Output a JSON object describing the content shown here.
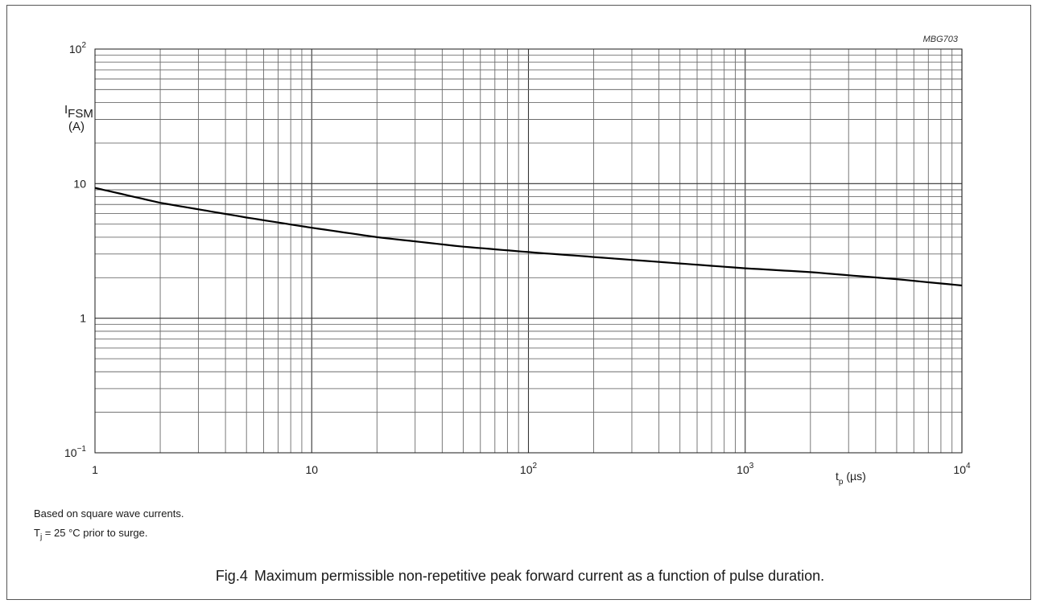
{
  "chart_data": {
    "type": "line",
    "code": "MBG703",
    "x_scale": "log",
    "y_scale": "log",
    "xlim": [
      1,
      10000
    ],
    "ylim": [
      0.1,
      100
    ],
    "grid": true,
    "xlabel": {
      "main": "t",
      "sub": "p",
      "unit": " (µs)"
    },
    "ylabel": {
      "main": "I",
      "sub": "FSM",
      "unit": "(A)"
    },
    "x_ticks": [
      {
        "base": "1",
        "exp": ""
      },
      {
        "base": "10",
        "exp": ""
      },
      {
        "base": "10",
        "exp": "2"
      },
      {
        "base": "10",
        "exp": "3"
      },
      {
        "base": "10",
        "exp": "4"
      }
    ],
    "y_ticks": [
      {
        "base": "10",
        "exp": "−1"
      },
      {
        "base": "1",
        "exp": ""
      },
      {
        "base": "10",
        "exp": ""
      },
      {
        "base": "10",
        "exp": "2"
      }
    ],
    "series": [
      {
        "x": [
          1,
          2,
          5,
          10,
          20,
          50,
          100,
          200,
          500,
          1000,
          2000,
          5000,
          10000
        ],
        "values": [
          9.3,
          7.2,
          5.6,
          4.7,
          4.0,
          3.4,
          3.1,
          2.85,
          2.55,
          2.35,
          2.2,
          1.95,
          1.75
        ]
      }
    ]
  },
  "notes": {
    "line1": "Based on square wave currents.",
    "line2_main": "T",
    "line2_sub": "j",
    "line2_rest": " = 25 °C prior to surge."
  },
  "caption": {
    "fig": "Fig.4",
    "text": "Maximum permissible non-repetitive peak forward current as a function of pulse duration."
  }
}
